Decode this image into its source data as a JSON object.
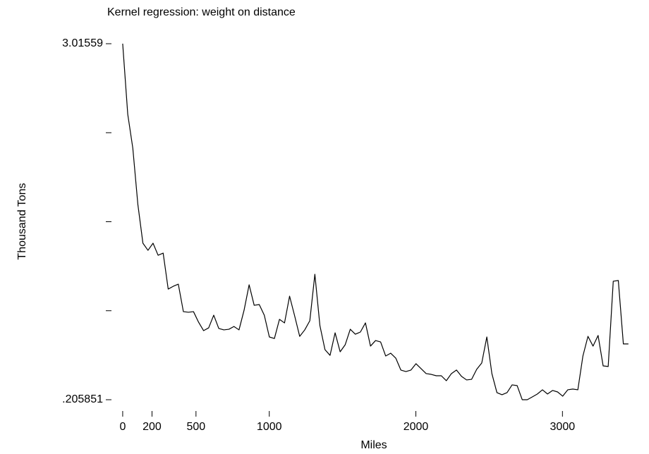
{
  "chart_data": {
    "type": "line",
    "title": "Kernel regression: weight on distance",
    "x_label": "Miles",
    "y_label": "Thousand Tons",
    "color": "#000000",
    "xlim": [
      -67,
      3523
    ],
    "ylim": [
      0.205851,
      3.01559
    ],
    "xticks": [
      0,
      200,
      500,
      1000,
      2000,
      3000
    ],
    "yticks": [
      {
        "value": 0.205851,
        "label": ".205851"
      },
      {
        "value": 0.908286,
        "label": null
      },
      {
        "value": 1.61072,
        "label": null
      },
      {
        "value": 2.313155,
        "label": null
      },
      3.01559
    ],
    "grid": false,
    "x": [
      0,
      34.5,
      69,
      103.5,
      138,
      172.5,
      207,
      241.5,
      276,
      310.5,
      345,
      379.5,
      414,
      448.5,
      483,
      517.5,
      552,
      586.5,
      621,
      655.5,
      690,
      724.5,
      759,
      793.5,
      828,
      862.5,
      897,
      931.5,
      966,
      1000.5,
      1035,
      1069.5,
      1104,
      1138.5,
      1173,
      1207.5,
      1242,
      1276.5,
      1311,
      1345.5,
      1380,
      1414.5,
      1449,
      1483.5,
      1518,
      1552.5,
      1587,
      1621.5,
      1656,
      1690.5,
      1725,
      1759.5,
      1794,
      1828.5,
      1863,
      1897.5,
      1932,
      1966.5,
      2001,
      2035.5,
      2070,
      2104.5,
      2139,
      2173.5,
      2208,
      2242.5,
      2277,
      2311.5,
      2346,
      2380.5,
      2415,
      2449.5,
      2484,
      2518.5,
      2553,
      2587.5,
      2622,
      2656.5,
      2691,
      2725.5,
      2760,
      2794.5,
      2829,
      2863.5,
      2898,
      2932.5,
      2967,
      3001.5,
      3036,
      3070.5,
      3105,
      3139.5,
      3174,
      3208.5,
      3243,
      3277.5,
      3312,
      3346.5,
      3381,
      3415.5,
      3450
    ],
    "values": [
      3.016,
      2.459,
      2.192,
      1.747,
      1.441,
      1.385,
      1.441,
      1.346,
      1.363,
      1.079,
      1.101,
      1.118,
      0.901,
      0.896,
      0.901,
      0.818,
      0.751,
      0.773,
      0.873,
      0.768,
      0.757,
      0.762,
      0.784,
      0.757,
      0.912,
      1.113,
      0.951,
      0.957,
      0.873,
      0.701,
      0.689,
      0.84,
      0.812,
      1.023,
      0.868,
      0.706,
      0.757,
      0.829,
      1.196,
      0.79,
      0.601,
      0.556,
      0.734,
      0.584,
      0.64,
      0.762,
      0.723,
      0.74,
      0.812,
      0.629,
      0.673,
      0.662,
      0.551,
      0.573,
      0.534,
      0.44,
      0.428,
      0.44,
      0.49,
      0.451,
      0.412,
      0.406,
      0.395,
      0.395,
      0.356,
      0.412,
      0.44,
      0.39,
      0.362,
      0.367,
      0.446,
      0.496,
      0.701,
      0.412,
      0.262,
      0.245,
      0.262,
      0.323,
      0.317,
      0.206,
      0.206,
      0.228,
      0.251,
      0.284,
      0.251,
      0.279,
      0.267,
      0.234,
      0.284,
      0.29,
      0.284,
      0.551,
      0.706,
      0.629,
      0.713,
      0.473,
      0.468,
      1.141,
      1.147,
      0.646,
      0.646
    ]
  }
}
